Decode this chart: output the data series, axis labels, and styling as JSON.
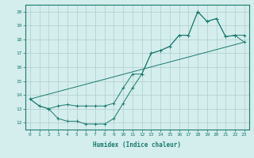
{
  "line1_x": [
    0,
    1,
    2,
    3,
    4,
    5,
    6,
    7,
    8,
    9,
    10,
    11,
    12,
    13,
    14,
    15,
    16,
    17,
    18,
    19,
    20,
    21,
    22,
    23
  ],
  "line1_y": [
    13.7,
    13.2,
    13.0,
    13.2,
    13.3,
    13.2,
    13.2,
    13.2,
    13.2,
    13.4,
    14.5,
    15.5,
    15.5,
    17.0,
    17.2,
    17.5,
    18.3,
    18.3,
    20.0,
    19.3,
    19.5,
    18.2,
    18.3,
    18.3
  ],
  "line2_x": [
    0,
    1,
    2,
    3,
    4,
    5,
    6,
    7,
    8,
    9,
    10,
    11,
    12,
    13,
    14,
    15,
    16,
    17,
    18,
    19,
    20,
    21,
    22,
    23
  ],
  "line2_y": [
    13.7,
    13.2,
    13.0,
    12.3,
    12.1,
    12.1,
    11.9,
    11.9,
    11.9,
    12.3,
    13.4,
    14.5,
    15.5,
    17.0,
    17.2,
    17.5,
    18.3,
    18.3,
    20.0,
    19.3,
    19.5,
    18.2,
    18.3,
    17.8
  ],
  "line3_x": [
    0,
    23
  ],
  "line3_y": [
    13.7,
    17.8
  ],
  "color": "#1a7a6e",
  "bg_color": "#d4eded",
  "grid_color": "#aecece",
  "xlabel": "Humidex (Indice chaleur)",
  "xlim": [
    -0.5,
    23.5
  ],
  "ylim": [
    11.5,
    20.5
  ],
  "yticks": [
    12,
    13,
    14,
    15,
    16,
    17,
    18,
    19,
    20
  ],
  "xticks": [
    0,
    1,
    2,
    3,
    4,
    5,
    6,
    7,
    8,
    9,
    10,
    11,
    12,
    13,
    14,
    15,
    16,
    17,
    18,
    19,
    20,
    21,
    22,
    23
  ]
}
